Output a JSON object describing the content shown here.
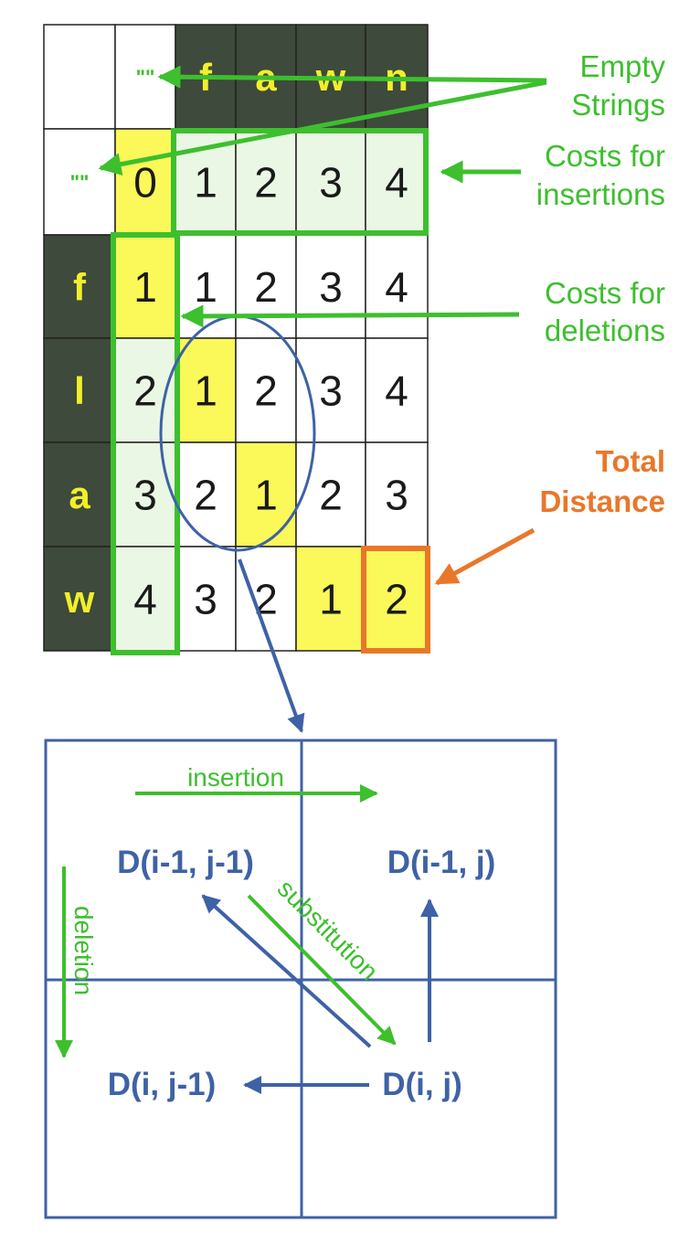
{
  "diagram": {
    "matrix": {
      "top_empty": "\"\"",
      "left_empty": "\"\"",
      "column_headers": [
        "f",
        "a",
        "w",
        "n"
      ],
      "row_headers": [
        "f",
        "l",
        "a",
        "w"
      ],
      "rows": [
        [
          0,
          1,
          2,
          3,
          4
        ],
        [
          1,
          1,
          2,
          3,
          4
        ],
        [
          2,
          1,
          2,
          3,
          4
        ],
        [
          3,
          2,
          1,
          2,
          3
        ],
        [
          4,
          3,
          2,
          1,
          2
        ]
      ],
      "highlight_path": [
        [
          0,
          0
        ],
        [
          1,
          0
        ],
        [
          2,
          1
        ],
        [
          3,
          2
        ],
        [
          4,
          3
        ],
        [
          4,
          4
        ]
      ]
    },
    "annotations": {
      "empty_strings": [
        "Empty",
        "Strings"
      ],
      "insertion_costs": [
        "Costs for",
        "insertions"
      ],
      "deletion_costs": [
        "Costs for",
        "deletions"
      ],
      "total_distance": [
        "Total",
        "Distance"
      ]
    },
    "recurrence": {
      "top_left": "D(i-1, j-1)",
      "top_right": "D(i-1, j)",
      "bottom_left": "D(i, j-1)",
      "bottom_right": "D(i, j)",
      "insertion": "insertion",
      "deletion": "deletion",
      "substitution": "substitution"
    },
    "colors": {
      "dark": "#3e4a3b",
      "header_text": "#f2ef2a",
      "yellow": "#fbf85a",
      "light_green": "#eaf7e4",
      "green": "#3dbf2e",
      "orange": "#e9772a",
      "blue": "#3e62a5"
    }
  }
}
